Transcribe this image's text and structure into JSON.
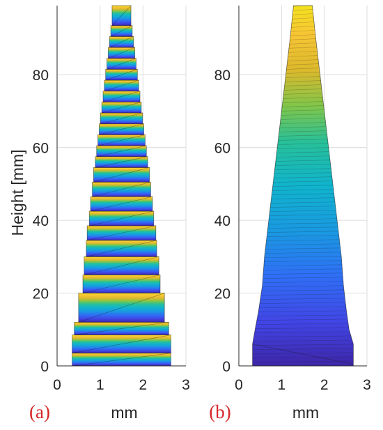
{
  "chart_data": [
    {
      "type": "area",
      "panel_label": "(a)",
      "xlabel": "mm",
      "ylabel": "Height [mm]",
      "xlim": [
        0,
        3
      ],
      "ylim": [
        0,
        99
      ],
      "xticks": [
        "0",
        "1",
        "2",
        "3"
      ],
      "yticks": [
        "0",
        "20",
        "40",
        "60",
        "80"
      ],
      "grid": true,
      "colormap": "parula",
      "layers": [
        {
          "y0": 0,
          "y1": 3.5,
          "x_left": 0.35,
          "x_right": 2.65
        },
        {
          "y0": 3.5,
          "y1": 8.5,
          "x_left": 0.35,
          "x_right": 2.65
        },
        {
          "y0": 8.5,
          "y1": 12.0,
          "x_left": 0.4,
          "x_right": 2.6
        },
        {
          "y0": 12.0,
          "y1": 20.0,
          "x_left": 0.5,
          "x_right": 2.5
        },
        {
          "y0": 20.0,
          "y1": 25.0,
          "x_left": 0.6,
          "x_right": 2.4
        },
        {
          "y0": 25.0,
          "y1": 30.0,
          "x_left": 0.63,
          "x_right": 2.37
        },
        {
          "y0": 30.0,
          "y1": 34.5,
          "x_left": 0.68,
          "x_right": 2.32
        },
        {
          "y0": 34.5,
          "y1": 38.5,
          "x_left": 0.7,
          "x_right": 2.3
        },
        {
          "y0": 38.5,
          "y1": 42.5,
          "x_left": 0.75,
          "x_right": 2.25
        },
        {
          "y0": 42.5,
          "y1": 46.5,
          "x_left": 0.78,
          "x_right": 2.22
        },
        {
          "y0": 46.5,
          "y1": 50.5,
          "x_left": 0.82,
          "x_right": 2.18
        },
        {
          "y0": 50.5,
          "y1": 54.5,
          "x_left": 0.85,
          "x_right": 2.15
        },
        {
          "y0": 54.5,
          "y1": 57.5,
          "x_left": 0.89,
          "x_right": 2.11
        },
        {
          "y0": 57.5,
          "y1": 60.5,
          "x_left": 0.92,
          "x_right": 2.08
        },
        {
          "y0": 60.5,
          "y1": 63.5,
          "x_left": 0.95,
          "x_right": 2.05
        },
        {
          "y0": 63.5,
          "y1": 66.5,
          "x_left": 0.98,
          "x_right": 2.02
        },
        {
          "y0": 66.5,
          "y1": 69.5,
          "x_left": 1.01,
          "x_right": 1.99
        },
        {
          "y0": 69.5,
          "y1": 72.5,
          "x_left": 1.04,
          "x_right": 1.96
        },
        {
          "y0": 72.5,
          "y1": 75.5,
          "x_left": 1.07,
          "x_right": 1.93
        },
        {
          "y0": 75.5,
          "y1": 78.5,
          "x_left": 1.1,
          "x_right": 1.9
        },
        {
          "y0": 78.5,
          "y1": 81.5,
          "x_left": 1.13,
          "x_right": 1.87
        },
        {
          "y0": 81.5,
          "y1": 84.5,
          "x_left": 1.16,
          "x_right": 1.84
        },
        {
          "y0": 84.5,
          "y1": 87.5,
          "x_left": 1.19,
          "x_right": 1.81
        },
        {
          "y0": 87.5,
          "y1": 90.5,
          "x_left": 1.22,
          "x_right": 1.78
        },
        {
          "y0": 90.5,
          "y1": 93.5,
          "x_left": 1.25,
          "x_right": 1.75
        },
        {
          "y0": 93.5,
          "y1": 99.0,
          "x_left": 1.28,
          "x_right": 1.72
        }
      ]
    },
    {
      "type": "area",
      "panel_label": "(b)",
      "xlabel": "mm",
      "ylabel": "",
      "xlim": [
        0,
        3
      ],
      "ylim": [
        0,
        99
      ],
      "xticks": [
        "0",
        "1",
        "2",
        "3"
      ],
      "yticks": [
        "0",
        "20",
        "40",
        "60",
        "80"
      ],
      "grid": true,
      "colormap": "parula",
      "profile": [
        {
          "y": 0,
          "x_left": 0.32,
          "x_right": 2.68
        },
        {
          "y": 6,
          "x_left": 0.32,
          "x_right": 2.68
        },
        {
          "y": 10,
          "x_left": 0.38,
          "x_right": 2.58
        },
        {
          "y": 15,
          "x_left": 0.46,
          "x_right": 2.52
        },
        {
          "y": 22,
          "x_left": 0.55,
          "x_right": 2.45
        },
        {
          "y": 30,
          "x_left": 0.6,
          "x_right": 2.4
        },
        {
          "y": 40,
          "x_left": 0.7,
          "x_right": 2.3
        },
        {
          "y": 50,
          "x_left": 0.8,
          "x_right": 2.2
        },
        {
          "y": 60,
          "x_left": 0.9,
          "x_right": 2.1
        },
        {
          "y": 70,
          "x_left": 1.0,
          "x_right": 2.0
        },
        {
          "y": 80,
          "x_left": 1.1,
          "x_right": 1.9
        },
        {
          "y": 90,
          "x_left": 1.2,
          "x_right": 1.8
        },
        {
          "y": 99,
          "x_left": 1.28,
          "x_right": 1.72
        }
      ]
    }
  ]
}
